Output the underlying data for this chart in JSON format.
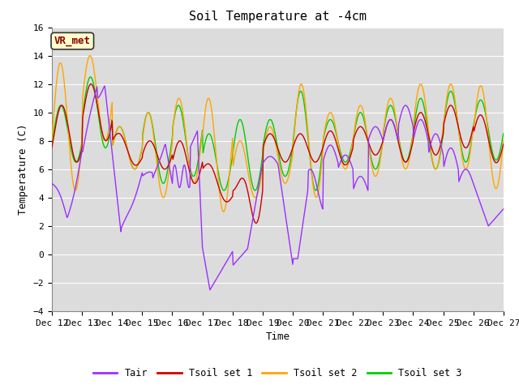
{
  "title": "Soil Temperature at -4cm",
  "xlabel": "Time",
  "ylabel": "Temperature (C)",
  "ylim": [
    -4,
    16
  ],
  "yticks": [
    -4,
    -2,
    0,
    2,
    4,
    6,
    8,
    10,
    12,
    14,
    16
  ],
  "x_tick_labels": [
    "Dec 12",
    "Dec 13",
    "Dec 14",
    "Dec 15",
    "Dec 16",
    "Dec 17",
    "Dec 18",
    "Dec 19",
    "Dec 20",
    "Dec 21",
    "Dec 22",
    "Dec 23",
    "Dec 24",
    "Dec 25",
    "Dec 26",
    "Dec 27"
  ],
  "annotation_text": "VR_met",
  "colors": {
    "Tair": "#9B30FF",
    "Tsoil_set1": "#CC0000",
    "Tsoil_set2": "#FFA500",
    "Tsoil_set3": "#00CC00"
  },
  "legend_labels": [
    "Tair",
    "Tsoil set 1",
    "Tsoil set 2",
    "Tsoil set 3"
  ],
  "fig_bg_color": "#FFFFFF",
  "plot_bg_color": "#DCDCDC",
  "grid_color": "#FFFFFF",
  "title_fontsize": 11,
  "axis_fontsize": 9,
  "tick_fontsize": 8
}
